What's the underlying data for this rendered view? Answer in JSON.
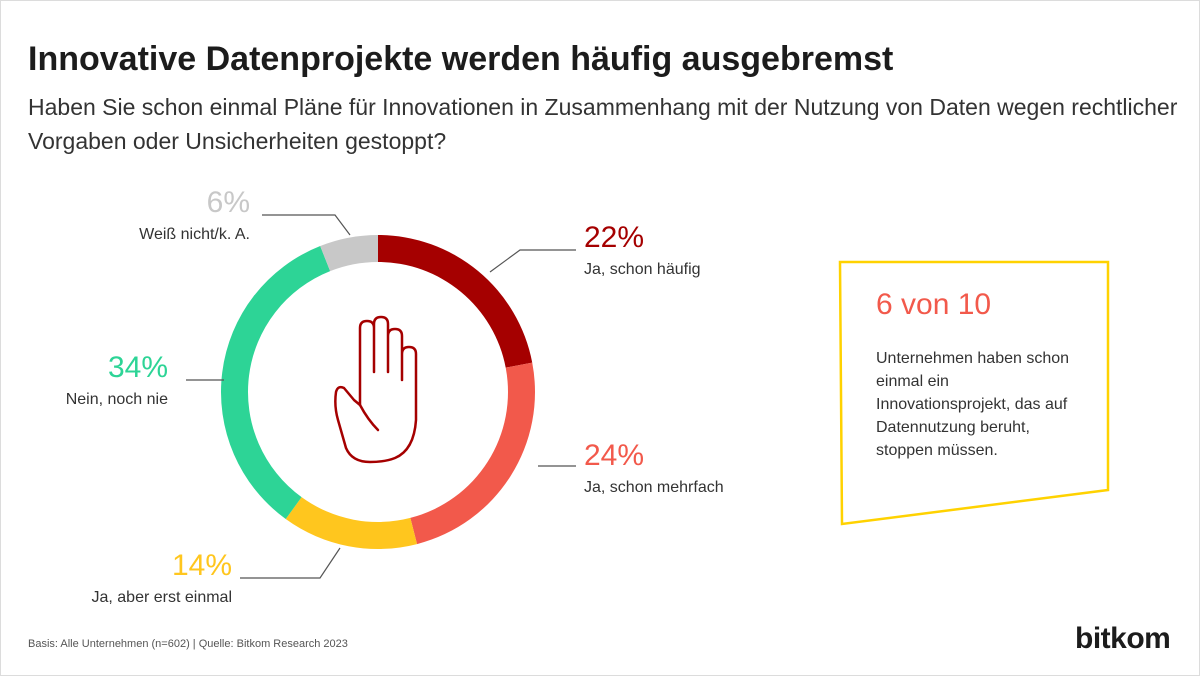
{
  "title": "Innovative Datenprojekte werden häufig ausgebremst",
  "subtitle": "Haben Sie schon einmal Pläne für Innovationen in Zusammenhang mit der Nutzung von Daten wegen rechtlicher Vorgaben oder Unsicherheiten gestoppt?",
  "chart_data": {
    "type": "pie",
    "variant": "donut",
    "center_icon": "raised-hand-stop-icon",
    "slices": [
      {
        "label": "Ja, schon häufig",
        "value": 22,
        "value_label": "22%",
        "color": "#a50000"
      },
      {
        "label": "Ja, schon mehrfach",
        "value": 24,
        "value_label": "24%",
        "color": "#f2594b"
      },
      {
        "label": "Ja, aber erst einmal",
        "value": 14,
        "value_label": "14%",
        "color": "#ffc61e"
      },
      {
        "label": "Nein, noch nie",
        "value": 34,
        "value_label": "34%",
        "color": "#2dd496"
      },
      {
        "label": "Weiß nicht/k. A.",
        "value": 6,
        "value_label": "6%",
        "color": "#c8c8c8"
      }
    ]
  },
  "callout": {
    "headline": "6 von 10",
    "text": "Unternehmen haben schon einmal ein Innovationsprojekt, das auf Datennutzung beruht, stoppen müssen.",
    "accent_color": "#ffd200"
  },
  "footnote": "Basis: Alle Unternehmen (n=602) | Quelle: Bitkom Research 2023",
  "logo": "bitkom"
}
